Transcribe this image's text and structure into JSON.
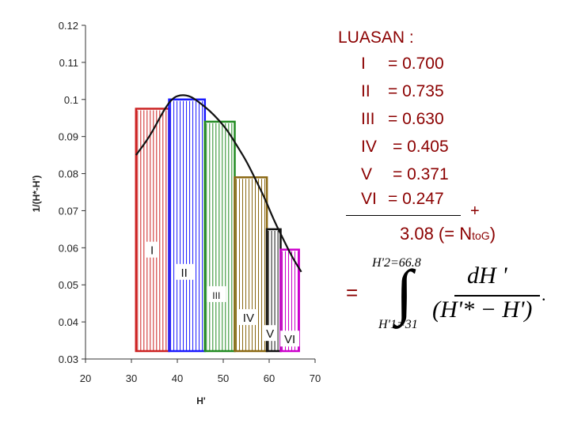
{
  "chart_data": {
    "type": "bar",
    "xlabel": "H'",
    "ylabel": "1/(H*-H')",
    "xlim": [
      20,
      70
    ],
    "ylim": [
      0.03,
      0.12
    ],
    "x_ticks": [
      "20",
      "30",
      "40",
      "50",
      "60",
      "70"
    ],
    "y_ticks": [
      "0.03",
      "0.04",
      "0.05",
      "0.06",
      "0.07",
      "0.08",
      "0.09",
      "0.1",
      "0.11",
      "0.12"
    ],
    "grid": false,
    "regions": [
      {
        "label": "I",
        "x0": 31,
        "x1": 38.2,
        "height": 0.0975,
        "color": "#cc2222"
      },
      {
        "label": "II",
        "x0": 38.2,
        "x1": 46,
        "height": 0.1,
        "color": "#1a1aff"
      },
      {
        "label": "III",
        "x0": 46,
        "x1": 52.5,
        "height": 0.094,
        "color": "#228b22"
      },
      {
        "label": "IV",
        "x0": 52.5,
        "x1": 59.5,
        "height": 0.079,
        "color": "#8b6914"
      },
      {
        "label": "V",
        "x0": 59.5,
        "x1": 62.5,
        "height": 0.065,
        "color": "#111111"
      },
      {
        "label": "VI",
        "x0": 62.5,
        "x1": 66.5,
        "height": 0.0595,
        "color": "#cc00cc"
      }
    ],
    "curve": {
      "x": [
        31,
        34,
        37,
        39,
        41,
        43,
        45,
        47,
        49,
        51,
        53,
        55,
        57,
        59,
        61,
        63,
        65,
        67
      ],
      "y": [
        0.085,
        0.09,
        0.097,
        0.1005,
        0.1013,
        0.1008,
        0.099,
        0.097,
        0.0945,
        0.0915,
        0.0875,
        0.0835,
        0.0785,
        0.0735,
        0.0675,
        0.0625,
        0.0575,
        0.0535
      ]
    }
  },
  "areas_panel": {
    "heading": "LUASAN :",
    "rows": [
      {
        "numeral": "I",
        "text": "= 0.700"
      },
      {
        "numeral": "II",
        "text": "= 0.735"
      },
      {
        "numeral": "III",
        "text": "= 0.630"
      },
      {
        "numeral": "IV",
        "text": "= 0.405"
      },
      {
        "numeral": "V",
        "text": "= 0.371"
      },
      {
        "numeral": "VI",
        "text": "= 0.247"
      }
    ],
    "plus": "+",
    "total_main": "3.08  (= N",
    "total_sub": "toG",
    "total_close": ")",
    "equals": "="
  },
  "formula": {
    "upper_limit": "H'2=66.8",
    "lower_limit": "H'1=31",
    "integral": "∫",
    "numerator": "dH '",
    "denominator": "(H'* − H')",
    "trailing": "."
  }
}
